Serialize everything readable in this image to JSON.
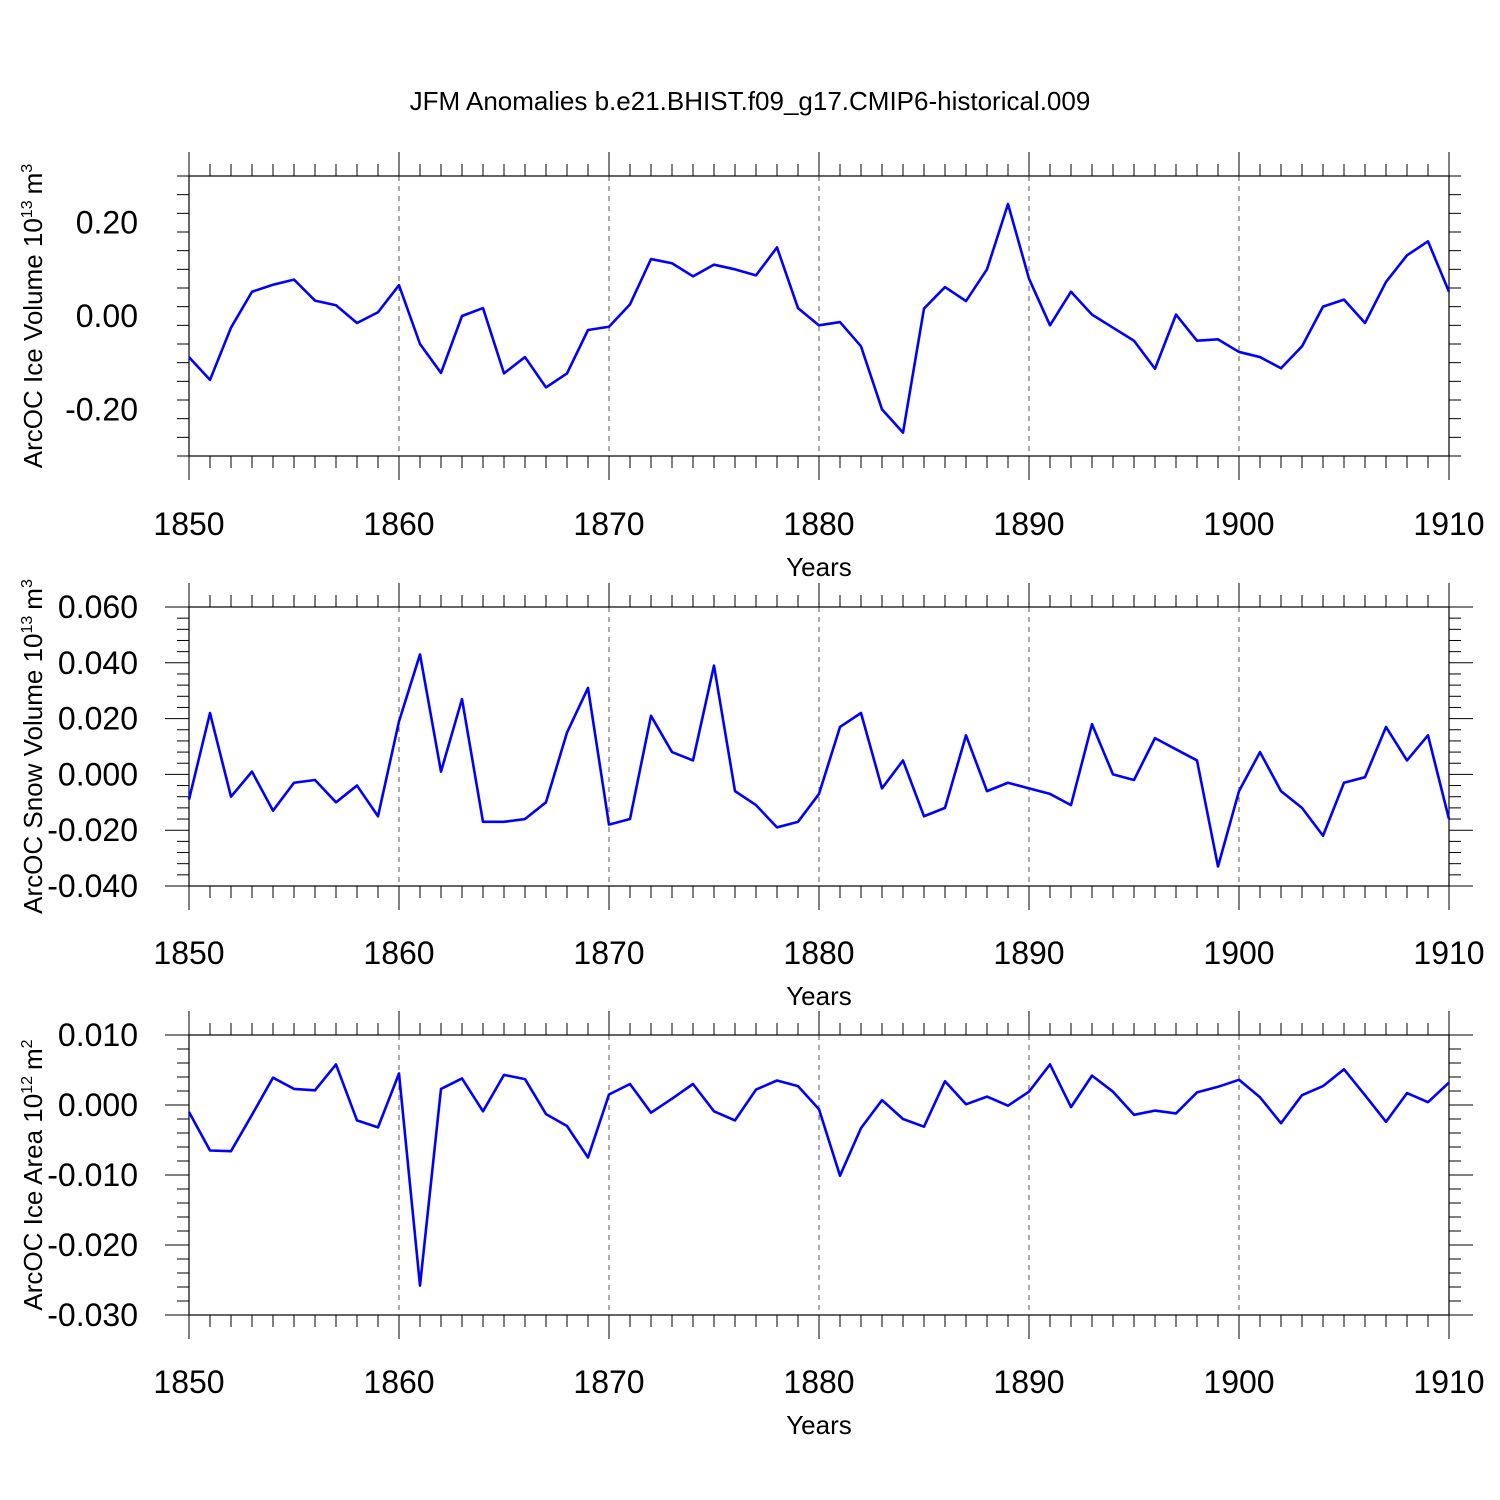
{
  "title": "JFM Anomalies b.e21.BHIST.f09_g17.CMIP6-historical.009",
  "series_color": "#0000ff",
  "chart_data": [
    {
      "type": "line",
      "name": "ice-volume",
      "ylabel": "ArcOC Ice Volume 10",
      "ylabel_exp": "13",
      "ylabel_unit": "m",
      "ylabel_unit_exp": "3",
      "xlabel": "Years",
      "xlim": [
        1850,
        1910
      ],
      "ylim": [
        -0.3,
        0.3
      ],
      "yticks": [
        -0.2,
        0.0,
        0.2
      ],
      "ytick_labels": [
        "-0.20",
        "0.00",
        "0.20"
      ],
      "xticks": [
        1850,
        1860,
        1870,
        1880,
        1890,
        1900,
        1910
      ],
      "xtick_labels": [
        "1850",
        "1860",
        "1870",
        "1880",
        "1890",
        "1900",
        "1910"
      ],
      "x_start": 1850,
      "values": [
        -0.088,
        -0.137,
        -0.025,
        0.052,
        0.067,
        0.078,
        0.033,
        0.023,
        -0.015,
        0.008,
        0.066,
        -0.06,
        -0.122,
        0.0,
        0.017,
        -0.123,
        -0.088,
        -0.153,
        -0.123,
        -0.03,
        -0.023,
        0.025,
        0.122,
        0.113,
        0.085,
        0.11,
        0.1,
        0.087,
        0.147,
        0.017,
        -0.02,
        -0.013,
        -0.065,
        -0.2,
        -0.25,
        0.016,
        0.062,
        0.032,
        0.1,
        0.24,
        0.08,
        -0.02,
        0.052,
        0.003,
        -0.025,
        -0.053,
        -0.113,
        0.003,
        -0.053,
        -0.05,
        -0.077,
        -0.088,
        -0.112,
        -0.065,
        0.02,
        0.035,
        -0.015,
        0.073,
        0.13,
        0.16,
        0.052
      ]
    },
    {
      "type": "line",
      "name": "snow-volume",
      "ylabel": "ArcOC Snow Volume 10",
      "ylabel_exp": "13",
      "ylabel_unit": "m",
      "ylabel_unit_exp": "3",
      "xlabel": "Years",
      "xlim": [
        1850,
        1910
      ],
      "ylim": [
        -0.04,
        0.06
      ],
      "yticks": [
        -0.04,
        -0.02,
        0.0,
        0.02,
        0.04,
        0.06
      ],
      "ytick_labels": [
        "-0.040",
        "-0.020",
        "0.000",
        "0.020",
        "0.040",
        "0.060"
      ],
      "xticks": [
        1850,
        1860,
        1870,
        1880,
        1890,
        1900,
        1910
      ],
      "xtick_labels": [
        "1850",
        "1860",
        "1870",
        "1880",
        "1890",
        "1900",
        "1910"
      ],
      "x_start": 1850,
      "values": [
        -0.009,
        0.022,
        -0.008,
        0.001,
        -0.013,
        -0.003,
        -0.002,
        -0.01,
        -0.004,
        -0.015,
        0.019,
        0.043,
        0.001,
        0.027,
        -0.017,
        -0.017,
        -0.016,
        -0.01,
        0.015,
        0.031,
        -0.018,
        -0.016,
        0.021,
        0.008,
        0.005,
        0.039,
        -0.006,
        -0.011,
        -0.019,
        -0.017,
        -0.007,
        0.017,
        0.022,
        -0.005,
        0.005,
        -0.015,
        -0.012,
        0.014,
        -0.006,
        -0.003,
        -0.005,
        -0.007,
        -0.011,
        0.018,
        0.0,
        -0.002,
        0.013,
        0.009,
        0.005,
        -0.033,
        -0.006,
        0.008,
        -0.006,
        -0.012,
        -0.022,
        -0.003,
        -0.001,
        0.017,
        0.005,
        0.014,
        -0.016
      ]
    },
    {
      "type": "line",
      "name": "ice-area",
      "ylabel": "ArcOC Ice Area 10",
      "ylabel_exp": "12",
      "ylabel_unit": "m",
      "ylabel_unit_exp": "2",
      "xlabel": "Years",
      "xlim": [
        1850,
        1910
      ],
      "ylim": [
        -0.03,
        0.01
      ],
      "yticks": [
        -0.03,
        -0.02,
        -0.01,
        0.0,
        0.01
      ],
      "ytick_labels": [
        "-0.030",
        "-0.020",
        "-0.010",
        "0.000",
        "0.010"
      ],
      "xticks": [
        1850,
        1860,
        1870,
        1880,
        1890,
        1900,
        1910
      ],
      "xtick_labels": [
        "1850",
        "1860",
        "1870",
        "1880",
        "1890",
        "1900",
        "1910"
      ],
      "x_start": 1850,
      "values": [
        -0.001,
        -0.0065,
        -0.0066,
        -0.0014,
        0.0039,
        0.0023,
        0.0021,
        0.0058,
        -0.0022,
        -0.0032,
        0.0045,
        -0.0258,
        0.0023,
        0.0038,
        -0.0009,
        0.0043,
        0.0037,
        -0.0013,
        -0.003,
        -0.0075,
        0.0015,
        0.003,
        -0.0011,
        0.0009,
        0.003,
        -0.0009,
        -0.0022,
        0.0022,
        0.0035,
        0.0027,
        -0.0006,
        -0.0101,
        -0.0033,
        0.0007,
        -0.002,
        -0.0031,
        0.0034,
        0.0001,
        0.0012,
        -0.0001,
        0.0019,
        0.0058,
        -0.0003,
        0.0042,
        0.0019,
        -0.0014,
        -0.0008,
        -0.0012,
        0.0018,
        0.0026,
        0.0036,
        0.0011,
        -0.0026,
        0.0014,
        0.0027,
        0.0051,
        0.0014,
        -0.0024,
        0.0017,
        0.0004,
        0.0032
      ]
    }
  ]
}
